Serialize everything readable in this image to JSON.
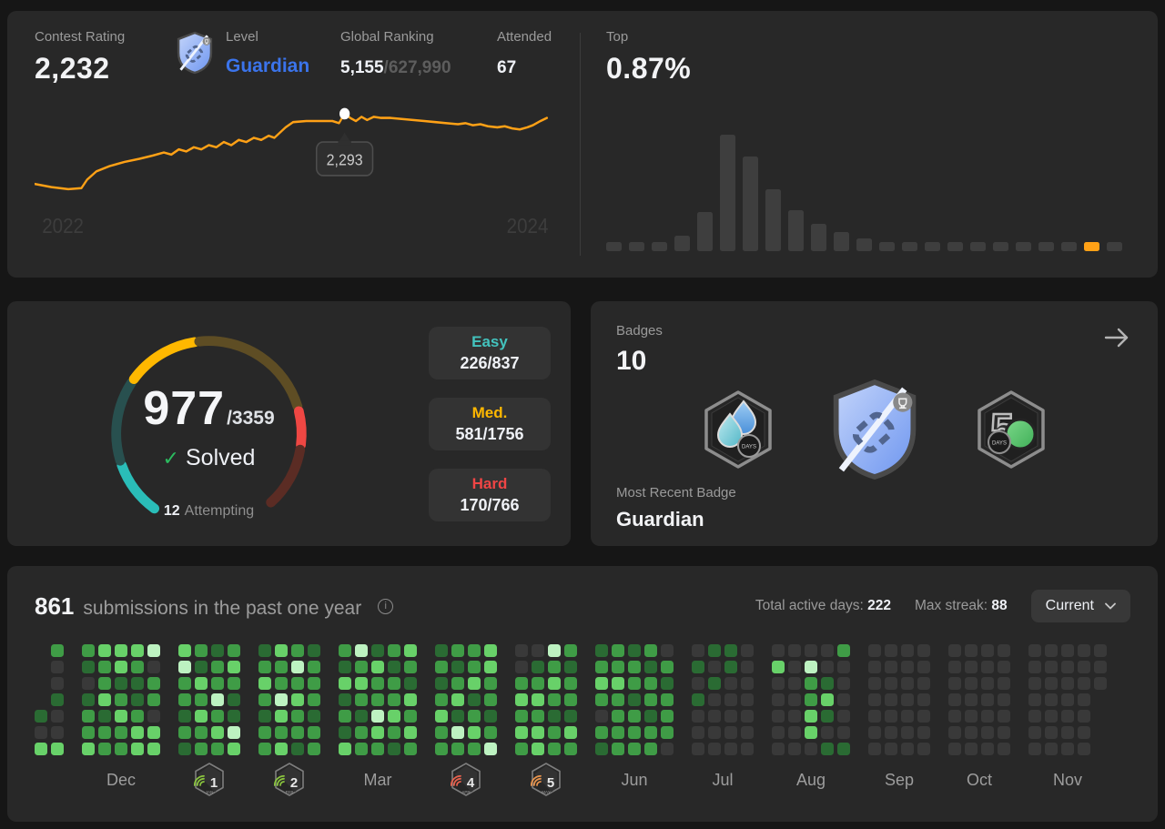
{
  "colors": {
    "page_bg": "#161616",
    "card_bg": "#282828",
    "accent_orange": "#ffa116",
    "blue": "#3b74eb",
    "easy_teal": "#43c3be",
    "medium_yellow": "#ffb800",
    "hard_red": "#f04545",
    "check_green": "#2bbb5f",
    "muted_text": "#9a9a9a"
  },
  "top_card": {
    "contest_rating_label": "Contest Rating",
    "contest_rating": "2,232",
    "level_label": "Level",
    "level": "Guardian",
    "global_ranking_label": "Global Ranking",
    "global_ranking": "5,155",
    "global_ranking_total": "/627,990",
    "attended_label": "Attended",
    "attended": "67",
    "top_label": "Top",
    "top_value": "0.87%"
  },
  "chart_data": [
    {
      "type": "line",
      "title": "contest-rating-trend",
      "color": "#ffa116",
      "x_ticks": [
        "2022",
        "2024"
      ],
      "tooltip": "2,293",
      "marker": [
        331,
        13
      ],
      "points": [
        [
          0,
          80
        ],
        [
          18,
          83
        ],
        [
          36,
          85
        ],
        [
          50,
          84
        ],
        [
          56,
          76
        ],
        [
          66,
          68
        ],
        [
          80,
          63
        ],
        [
          96,
          59
        ],
        [
          112,
          56
        ],
        [
          126,
          53
        ],
        [
          138,
          50
        ],
        [
          146,
          52
        ],
        [
          154,
          47
        ],
        [
          162,
          49
        ],
        [
          170,
          45
        ],
        [
          178,
          47
        ],
        [
          186,
          43
        ],
        [
          194,
          45
        ],
        [
          202,
          40
        ],
        [
          210,
          43
        ],
        [
          218,
          38
        ],
        [
          226,
          40
        ],
        [
          234,
          36
        ],
        [
          242,
          38
        ],
        [
          250,
          34
        ],
        [
          256,
          36
        ],
        [
          262,
          31
        ],
        [
          268,
          26
        ],
        [
          276,
          21
        ],
        [
          290,
          20
        ],
        [
          305,
          20
        ],
        [
          318,
          20
        ],
        [
          325,
          22
        ],
        [
          331,
          13
        ],
        [
          337,
          17
        ],
        [
          343,
          20
        ],
        [
          349,
          16
        ],
        [
          355,
          19
        ],
        [
          362,
          16
        ],
        [
          370,
          17
        ],
        [
          380,
          17
        ],
        [
          392,
          18
        ],
        [
          404,
          19
        ],
        [
          416,
          20
        ],
        [
          428,
          21
        ],
        [
          440,
          22
        ],
        [
          452,
          23
        ],
        [
          460,
          22
        ],
        [
          468,
          24
        ],
        [
          476,
          23
        ],
        [
          484,
          25
        ],
        [
          494,
          26
        ],
        [
          502,
          25
        ],
        [
          510,
          27
        ],
        [
          518,
          28
        ],
        [
          526,
          26
        ],
        [
          532,
          24
        ],
        [
          540,
          20
        ],
        [
          547,
          17
        ]
      ]
    },
    {
      "type": "bar",
      "title": "rating-distribution",
      "values": [
        10,
        10,
        10,
        17,
        43,
        128,
        104,
        68,
        45,
        30,
        21,
        14,
        10,
        10,
        10,
        10,
        10,
        10,
        10,
        10,
        10,
        10,
        10
      ],
      "highlight_index": 21,
      "bar_color": "#3e3e3e",
      "highlight_color": "#ffa116"
    },
    {
      "type": "gauge",
      "title": "solved-progress",
      "segments": [
        {
          "name": "easy-solved",
          "start": 216,
          "end": 250,
          "color": "#2abdb8"
        },
        {
          "name": "easy-rest",
          "start": 253,
          "end": 303,
          "color": "#28504f"
        },
        {
          "name": "medium-solved",
          "start": 306,
          "end": 351,
          "color": "#ffb800"
        },
        {
          "name": "medium-rest",
          "start": 354,
          "end": 433,
          "color": "#5e4d24"
        },
        {
          "name": "hard-solved",
          "start": 436,
          "end": 457,
          "color": "#ef4743"
        },
        {
          "name": "hard-rest",
          "start": 460,
          "end": 498,
          "color": "#5b2c24"
        }
      ]
    }
  ],
  "progress_card": {
    "solved": "977",
    "total": "/3359",
    "check_icon": "✓",
    "solved_label": "Solved",
    "attempting_count": "12",
    "attempting_label": "Attempting",
    "difficulties": [
      {
        "label": "Easy",
        "value": "226/837",
        "color": "#43c3be"
      },
      {
        "label": "Med.",
        "value": "581/1756",
        "color": "#ffb800"
      },
      {
        "label": "Hard",
        "value": "170/766",
        "color": "#f04545"
      }
    ]
  },
  "badges_card": {
    "label": "Badges",
    "count": "10",
    "badges": [
      {
        "name": "100-days-badge"
      },
      {
        "name": "guardian-badge"
      },
      {
        "name": "50-days-badge"
      }
    ],
    "most_recent_label": "Most Recent Badge",
    "most_recent": "Guardian"
  },
  "heatmap_card": {
    "count": "861",
    "title_rest": "submissions in the past one year",
    "total_active_days_label": "Total active days:",
    "total_active_days": "222",
    "max_streak_label": "Max streak:",
    "max_streak": "88",
    "dropdown_value": "Current",
    "heatmap": {
      "palette": {
        "0": "#393939",
        "1": "#2a6b33",
        "2": "#3f9c46",
        "3": "#68d169",
        "4": "#bdf2c1"
      },
      "months": [
        {
          "label": "",
          "cols": [
            "----103",
            "2001003"
          ]
        },
        {
          "label": "Dec",
          "cols": [
            "2101223",
            "3223122",
            "3312322",
            "3211233",
            "4022033"
          ]
        },
        {
          "label": "",
          "badge": {
            "num": "1",
            "sub": "JAN",
            "color": "#8ac43e"
          },
          "cols": [
            "3422121",
            "2132322",
            "1224232",
            "2321143"
          ]
        },
        {
          "label": "",
          "badge": {
            "num": "2",
            "sub": "FEB",
            "color": "#8ac43e"
          },
          "cols": [
            "1232122",
            "3224323",
            "2423221",
            "1222122"
          ]
        },
        {
          "label": "Mar",
          "cols": [
            "2131213",
            "4232122",
            "1322432",
            "2122321",
            "3213232"
          ]
        },
        {
          "label": "",
          "badge": {
            "num": "4",
            "sub": "APR",
            "color": "#e8614d"
          },
          "cols": [
            "1212322",
            "2123142",
            "2231232",
            "3322124"
          ]
        },
        {
          "label": "",
          "badge": {
            "num": "5",
            "sub": "MAY",
            "color": "#e8944d"
          },
          "cols": [
            "0023232",
            "0123233",
            "4232122",
            "2122132"
          ]
        },
        {
          "label": "Jun",
          "cols": [
            "1232021",
            "2232222",
            "1221222",
            "2122122",
            "0212220"
          ]
        },
        {
          "label": "Jul",
          "cols": [
            "0101000",
            "1010000",
            "1100000",
            "0000000"
          ]
        },
        {
          "label": "Aug",
          "cols": [
            "0300000",
            "0000000",
            "0422330",
            "0013101",
            "2000001"
          ]
        },
        {
          "label": "Sep",
          "cols": [
            "0000000",
            "0000000",
            "0000000",
            "0000000"
          ]
        },
        {
          "label": "Oct",
          "cols": [
            "0000000",
            "0000000",
            "0000000",
            "0000000"
          ]
        },
        {
          "label": "Nov",
          "cols": [
            "0000000",
            "0000000",
            "0000000",
            "0000000",
            "000----"
          ]
        }
      ]
    }
  }
}
